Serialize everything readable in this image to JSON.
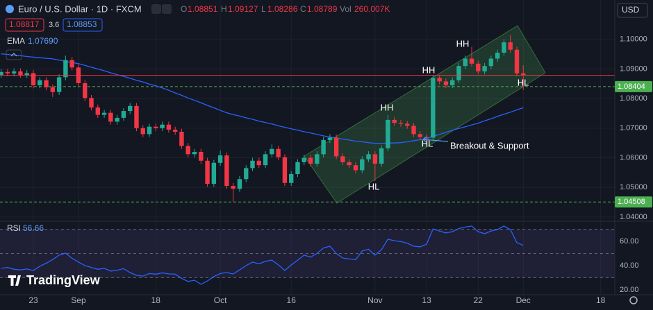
{
  "chart_data": {
    "type": "candlestick",
    "title": "Euro / U.S. Dollar · 1D · FXCM",
    "currency": "USD",
    "legend_labels": {
      "open": "O",
      "high": "H",
      "low": "L",
      "close": "C",
      "volume": "Vol"
    },
    "volume": {
      "value": 260007,
      "label": "260.007K"
    },
    "quote": {
      "bid": 1.08817,
      "spread": 3.6,
      "ask": 1.08853
    },
    "colors": {
      "up": "#22ab94",
      "down": "#f23645"
    },
    "categories": [
      null,
      null,
      null,
      null,
      null,
      "23",
      null,
      null,
      null,
      null,
      null,
      null,
      "Sep",
      null,
      null,
      null,
      null,
      null,
      null,
      null,
      null,
      null,
      null,
      null,
      "18",
      null,
      null,
      null,
      null,
      null,
      null,
      null,
      null,
      null,
      "Oct",
      null,
      null,
      null,
      null,
      null,
      null,
      null,
      null,
      null,
      null,
      "16",
      null,
      null,
      null,
      null,
      null,
      null,
      null,
      null,
      null,
      null,
      null,
      null,
      "Nov",
      null,
      null,
      null,
      null,
      null,
      null,
      null,
      "13",
      null,
      null,
      null,
      null,
      null,
      null,
      null,
      "22",
      null,
      null,
      null,
      null,
      null,
      null,
      "Dec",
      null,
      null,
      null,
      null,
      null,
      null,
      null,
      null,
      null,
      null,
      null,
      "18"
    ],
    "open": [
      1.088,
      1.089,
      1.0885,
      1.0892,
      1.088,
      1.0886,
      1.0845,
      1.0862,
      1.0838,
      1.0822,
      1.0872,
      1.093,
      1.0905,
      1.0852,
      1.0802,
      1.077,
      1.0745,
      1.0752,
      1.0722,
      1.0735,
      1.0758,
      1.0775,
      1.07,
      1.068,
      1.0705,
      1.07,
      1.0712,
      1.0695,
      1.0688,
      1.064,
      1.0612,
      1.062,
      1.059,
      1.0512,
      1.0583,
      1.0608,
      1.0505,
      1.0495,
      1.0528,
      1.0565,
      1.059,
      1.0575,
      1.0612,
      1.063,
      1.0602,
      1.0515,
      1.0545,
      1.0585,
      1.06,
      1.058,
      1.0612,
      1.066,
      1.0668,
      1.0605,
      1.0585,
      1.0575,
      1.0558,
      1.0595,
      1.0612,
      1.058,
      1.0632,
      1.0728,
      1.0718,
      1.0715,
      1.0708,
      1.068,
      1.067,
      1.0668,
      1.087,
      1.0858,
      1.0845,
      1.0862,
      1.091,
      1.0935,
      1.0918,
      1.0892,
      1.091,
      1.0935,
      1.0955,
      1.099,
      1.0965,
      1.08851,
      null,
      null,
      null,
      null,
      null,
      null,
      null,
      null,
      null,
      null,
      null,
      null
    ],
    "high": [
      1.09,
      1.09,
      1.0902,
      1.0902,
      1.0896,
      1.0896,
      1.0872,
      1.0872,
      1.0848,
      1.0882,
      1.0945,
      1.094,
      1.0915,
      1.0862,
      1.0812,
      1.078,
      1.0762,
      1.0762,
      1.0745,
      1.0768,
      1.0785,
      1.0785,
      1.071,
      1.0715,
      1.0715,
      1.0722,
      1.0722,
      1.0705,
      1.0698,
      1.065,
      1.063,
      1.063,
      1.06,
      1.0593,
      1.0625,
      1.0618,
      1.0515,
      1.0538,
      1.0575,
      1.06,
      1.06,
      1.0622,
      1.0645,
      1.064,
      1.0612,
      1.0555,
      1.0595,
      1.061,
      1.061,
      1.0622,
      1.067,
      1.068,
      1.0678,
      1.0615,
      1.0595,
      1.0585,
      1.0605,
      1.0622,
      1.0622,
      1.0642,
      1.0745,
      1.0738,
      1.0728,
      1.0725,
      1.0718,
      1.069,
      1.068,
      1.088,
      1.088,
      1.0868,
      1.0872,
      1.092,
      1.0945,
      1.0975,
      1.0928,
      1.092,
      1.0945,
      1.0965,
      1.1,
      1.1015,
      1.0975,
      1.09127,
      null,
      null,
      null,
      null,
      null,
      null,
      null,
      null,
      null,
      null,
      null,
      null
    ],
    "low": [
      1.087,
      1.0875,
      1.0875,
      1.087,
      1.087,
      1.0835,
      1.0835,
      1.0828,
      1.0805,
      1.0812,
      1.0862,
      1.0895,
      1.0842,
      1.0792,
      1.076,
      1.0735,
      1.0735,
      1.0712,
      1.0712,
      1.0725,
      1.0748,
      1.069,
      1.067,
      1.067,
      1.069,
      1.069,
      1.0685,
      1.0678,
      1.063,
      1.0602,
      1.0602,
      1.058,
      1.0502,
      1.0502,
      1.0573,
      1.0495,
      1.0452,
      1.0485,
      1.0518,
      1.0555,
      1.0565,
      1.0565,
      1.0602,
      1.0592,
      1.0505,
      1.0505,
      1.0535,
      1.0575,
      1.057,
      1.057,
      1.0602,
      1.065,
      1.0595,
      1.0575,
      1.0565,
      1.0548,
      1.0548,
      1.0585,
      1.0522,
      1.057,
      1.0622,
      1.0708,
      1.0705,
      1.0698,
      1.067,
      1.066,
      1.0658,
      1.0658,
      1.0848,
      1.0835,
      1.0835,
      1.0852,
      1.09,
      1.0908,
      1.0882,
      1.0882,
      1.09,
      1.0925,
      1.0945,
      1.0955,
      1.0875,
      1.08286,
      null,
      null,
      null,
      null,
      null,
      null,
      null,
      null,
      null,
      null,
      null,
      null
    ],
    "close": [
      1.089,
      1.0885,
      1.0892,
      1.088,
      1.0886,
      1.0845,
      1.0862,
      1.0838,
      1.0822,
      1.0872,
      1.093,
      1.0905,
      1.0852,
      1.0802,
      1.077,
      1.0745,
      1.0752,
      1.0722,
      1.0735,
      1.0758,
      1.0775,
      1.07,
      1.068,
      1.0705,
      1.07,
      1.0712,
      1.0695,
      1.0688,
      1.064,
      1.0612,
      1.062,
      1.059,
      1.0512,
      1.0583,
      1.0608,
      1.0505,
      1.0495,
      1.0528,
      1.0565,
      1.059,
      1.0575,
      1.0612,
      1.063,
      1.0602,
      1.0515,
      1.0545,
      1.0585,
      1.06,
      1.058,
      1.0612,
      1.066,
      1.0668,
      1.0605,
      1.0585,
      1.0575,
      1.0558,
      1.0595,
      1.0612,
      1.058,
      1.0632,
      1.0728,
      1.0718,
      1.0715,
      1.0708,
      1.068,
      1.067,
      1.0668,
      1.087,
      1.0858,
      1.0845,
      1.0862,
      1.091,
      1.0935,
      1.0918,
      1.0892,
      1.091,
      1.0935,
      1.0955,
      1.099,
      1.0965,
      1.0885,
      1.08789,
      null,
      null,
      null,
      null,
      null,
      null,
      null,
      null,
      null,
      null,
      null,
      null
    ],
    "last_price_color": "#f23645",
    "ylim": [
      1.0388,
      1.1133
    ],
    "yticks": [
      {
        "value": 1.04,
        "label": "1.04000"
      },
      {
        "value": 1.05,
        "label": "1.05000"
      },
      {
        "value": 1.06,
        "label": "1.06000"
      },
      {
        "value": 1.07,
        "label": "1.07000"
      },
      {
        "value": 1.08,
        "label": "1.08000"
      },
      {
        "value": 1.09,
        "label": "1.09000"
      },
      {
        "value": 1.1,
        "label": "1.10000"
      }
    ],
    "grid": true,
    "hlines": [
      {
        "value": 1.08404,
        "color": "#4caf50"
      },
      {
        "value": 1.04508,
        "color": "#4caf50"
      }
    ],
    "ema": {
      "name": "EMA",
      "value": {
        "value": 1.0769,
        "label": "1.07690"
      },
      "color": "#2962ff",
      "values": [
        1.0951,
        1.0949,
        1.0947,
        1.0945,
        1.0942,
        1.094,
        1.0938,
        1.0936,
        1.0934,
        1.093,
        1.0926,
        1.0922,
        1.0918,
        1.0912,
        1.0906,
        1.09,
        1.0894,
        1.0887,
        1.0881,
        1.0875,
        1.0869,
        1.0862,
        1.0856,
        1.0849,
        1.0843,
        1.0836,
        1.0828,
        1.0819,
        1.0811,
        1.0802,
        1.0794,
        1.0786,
        1.0777,
        1.0769,
        1.076,
        1.0752,
        1.0746,
        1.0741,
        1.0735,
        1.073,
        1.0724,
        1.0719,
        1.0714,
        1.0708,
        1.0703,
        1.0698,
        1.0693,
        1.0688,
        1.0684,
        1.0679,
        1.0674,
        1.067,
        1.0667,
        1.0663,
        1.066,
        1.0656,
        1.0654,
        1.0651,
        1.0649,
        1.0649,
        1.065,
        1.065,
        1.0651,
        1.0654,
        1.0658,
        1.0661,
        1.0665,
        1.0672,
        1.0679,
        1.0686,
        1.0693,
        1.0699,
        1.0705,
        1.0711,
        1.0717,
        1.0725,
        1.0732,
        1.074,
        1.0747,
        1.0754,
        1.0762,
        1.0769,
        null,
        null,
        null,
        null,
        null,
        null,
        null,
        null,
        null,
        null,
        null,
        null
      ]
    },
    "rsi": {
      "name": "RSI",
      "value": 56.66,
      "color": "#2962ff",
      "ylim": [
        16,
        76
      ],
      "yticks": [
        {
          "value": 20,
          "label": "20.00"
        },
        {
          "value": 40,
          "label": "40.00"
        },
        {
          "value": 60,
          "label": "60.00"
        }
      ],
      "levels": [
        30,
        50,
        70
      ],
      "values": [
        37.7,
        38.5,
        37.0,
        36.5,
        37.2,
        36.0,
        39.5,
        42.0,
        45.0,
        48.6,
        50.3,
        46.0,
        43.0,
        40.0,
        38.5,
        37.0,
        37.8,
        35.5,
        36.2,
        37.5,
        34.3,
        32.0,
        31.4,
        33.5,
        33.0,
        34.0,
        33.2,
        33.0,
        29.5,
        27.0,
        28.0,
        24.6,
        27.4,
        31.0,
        33.5,
        34.3,
        33.1,
        36.5,
        40.0,
        42.9,
        41.5,
        43.5,
        44.5,
        40.6,
        36.0,
        40.5,
        44.5,
        48.6,
        47.0,
        50.0,
        54.5,
        56.0,
        50.0,
        46.3,
        45.5,
        45.0,
        52.0,
        53.5,
        48.6,
        53.1,
        61.7,
        60.5,
        59.8,
        58.5,
        56.0,
        55.5,
        57.7,
        70.3,
        68.5,
        66.9,
        68.0,
        70.5,
        71.8,
        72.6,
        68.0,
        66.3,
        68.5,
        69.7,
        72.6,
        69.7,
        58.9,
        56.66,
        null,
        null,
        null,
        null,
        null,
        null,
        null,
        null,
        null,
        null,
        null,
        null
      ]
    },
    "annotations": [
      "HH",
      "HH",
      "HH",
      "HL",
      "HL",
      "HL",
      "Breakout & Support"
    ],
    "watermark": "TradingView"
  }
}
